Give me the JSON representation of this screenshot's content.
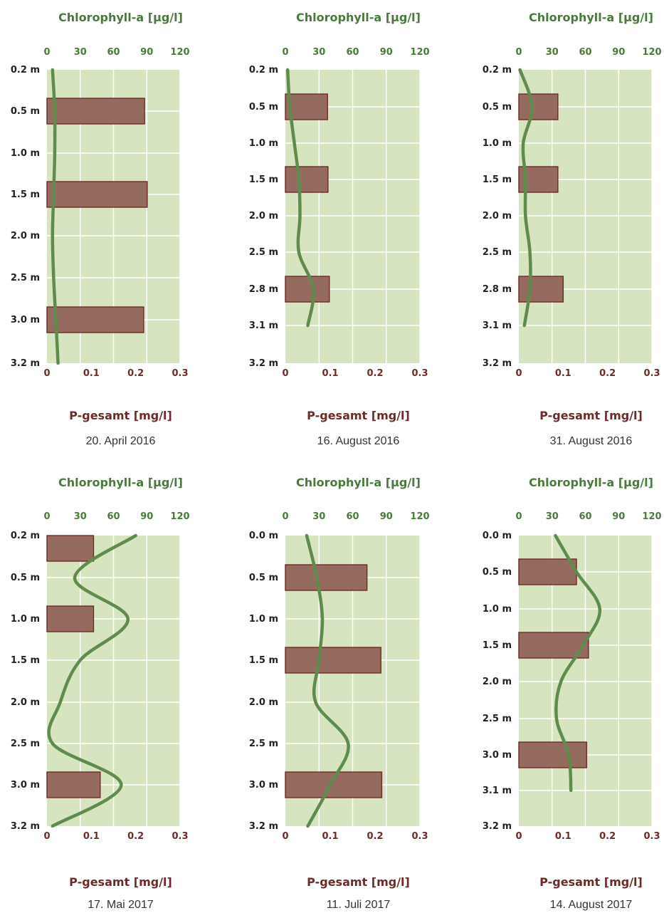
{
  "chart_data": [
    {
      "type": "bar+line",
      "date": "20. April 2016",
      "title_top": "Chlorophyll-a [µg/l]",
      "title_bottom": "P-gesamt [mg/l]",
      "top_ticks": [
        "0",
        "30",
        "60",
        "90",
        "120"
      ],
      "bottom_ticks": [
        "0",
        "0.1",
        "0.2",
        "0.3"
      ],
      "depth_labels": [
        "0.2 m",
        "0.5 m",
        "1.0 m",
        "1.5 m",
        "2.0 m",
        "2.5 m",
        "3.0 m",
        "3.2 m"
      ],
      "p_bars": [
        {
          "depth": "0.5 m",
          "value": 0.22
        },
        {
          "depth": "1.5 m",
          "value": 0.226
        },
        {
          "depth": "3.0 m",
          "value": 0.218
        }
      ],
      "chl_line": {
        "depths": [
          "0.2 m",
          "0.5 m",
          "1.0 m",
          "1.5 m",
          "2.0 m",
          "2.5 m",
          "3.0 m",
          "3.2 m"
        ],
        "values": [
          5,
          7,
          7,
          6,
          5,
          6,
          8,
          10
        ]
      },
      "chl_range": [
        0,
        120
      ],
      "p_range": [
        0,
        0.3
      ]
    },
    {
      "type": "bar+line",
      "date": "16. August 2016",
      "title_top": "Chlorophyll-a [µg/l]",
      "title_bottom": "P-gesamt [mg/l]",
      "top_ticks": [
        "0",
        "30",
        "60",
        "90",
        "120"
      ],
      "bottom_ticks": [
        "0",
        "0.1",
        "0.2",
        "0.3"
      ],
      "depth_labels": [
        "0.2 m",
        "0.5 m",
        "1.0 m",
        "1.5 m",
        "2.0 m",
        "2.5 m",
        "2.8 m",
        "3.1 m",
        "3.2 m"
      ],
      "p_bars": [
        {
          "depth": "0.5 m",
          "value": 0.094
        },
        {
          "depth": "1.5 m",
          "value": 0.095
        },
        {
          "depth": "2.8 m",
          "value": 0.098
        }
      ],
      "chl_line": {
        "depths": [
          "0.2 m",
          "0.5 m",
          "1.0 m",
          "1.5 m",
          "2.0 m",
          "2.5 m",
          "2.8 m",
          "3.1 m"
        ],
        "values": [
          2,
          4,
          8,
          12,
          13,
          12,
          25,
          20
        ]
      },
      "chl_range": [
        0,
        120
      ],
      "p_range": [
        0,
        0.3
      ]
    },
    {
      "type": "bar+line",
      "date": "31. August 2016",
      "title_top": "Chlorophyll-a [µg/l]",
      "title_bottom": "P-gesamt [mg/l]",
      "top_ticks": [
        "0",
        "30",
        "60",
        "90",
        "120"
      ],
      "bottom_ticks": [
        "0",
        "0.1",
        "0.2",
        "0.3"
      ],
      "depth_labels": [
        "0.2 m",
        "0.5 m",
        "1.0 m",
        "1.5 m",
        "2.0 m",
        "2.5 m",
        "2.8 m",
        "3.1 m",
        "3.2 m"
      ],
      "p_bars": [
        {
          "depth": "0.5 m",
          "value": 0.088
        },
        {
          "depth": "1.5 m",
          "value": 0.088
        },
        {
          "depth": "2.8 m",
          "value": 0.1
        }
      ],
      "chl_line": {
        "depths": [
          "0.2 m",
          "0.5 m",
          "1.0 m",
          "1.5 m",
          "2.0 m",
          "2.5 m",
          "2.8 m",
          "3.1 m"
        ],
        "values": [
          1,
          12,
          4,
          6,
          6,
          10,
          10,
          5
        ]
      },
      "chl_range": [
        0,
        120
      ],
      "p_range": [
        0,
        0.3
      ]
    },
    {
      "type": "bar+line",
      "date": "17. Mai 2017",
      "title_top": "Chlorophyll-a [µg/l]",
      "title_bottom": "P-gesamt [mg/l]",
      "top_ticks": [
        "0",
        "30",
        "60",
        "90",
        "120"
      ],
      "bottom_ticks": [
        "0",
        "0.1",
        "0.2",
        "0.3"
      ],
      "depth_labels": [
        "0.2 m",
        "0.5 m",
        "1.0 m",
        "1.5 m",
        "2.0 m",
        "2.5 m",
        "3.0 m",
        "3.2 m"
      ],
      "p_bars": [
        {
          "depth": "0.2 m",
          "value": 0.105
        },
        {
          "depth": "1.0 m",
          "value": 0.105
        },
        {
          "depth": "3.0 m",
          "value": 0.12
        }
      ],
      "chl_line": {
        "depths": [
          "0.2 m",
          "0.5 m",
          "1.0 m",
          "1.5 m",
          "2.0 m",
          "2.5 m",
          "3.0 m",
          "3.2 m"
        ],
        "values": [
          80,
          25,
          73,
          30,
          12,
          5,
          67,
          5
        ]
      },
      "chl_range": [
        0,
        120
      ],
      "p_range": [
        0,
        0.3
      ]
    },
    {
      "type": "bar+line",
      "date": "11. Juli 2017",
      "title_top": "Chlorophyll-a [µg/l]",
      "title_bottom": "P-gesamt [mg/l]",
      "top_ticks": [
        "0",
        "30",
        "60",
        "90",
        "120"
      ],
      "bottom_ticks": [
        "0",
        "0.1",
        "0.2",
        "0.3"
      ],
      "depth_labels": [
        "0.0 m",
        "0.5 m",
        "1.0 m",
        "1.5 m",
        "2.0 m",
        "2.5 m",
        "3.0 m",
        "3.2 m"
      ],
      "p_bars": [
        {
          "depth": "0.5 m",
          "value": 0.182
        },
        {
          "depth": "1.5 m",
          "value": 0.213
        },
        {
          "depth": "3.0 m",
          "value": 0.215
        }
      ],
      "chl_line": {
        "depths": [
          "0.0 m",
          "0.5 m",
          "1.0 m",
          "1.5 m",
          "2.0 m",
          "2.5 m",
          "3.0 m",
          "3.2 m"
        ],
        "values": [
          19,
          28,
          33,
          30,
          27,
          56,
          40,
          20
        ]
      },
      "chl_range": [
        0,
        120
      ],
      "p_range": [
        0,
        0.3
      ]
    },
    {
      "type": "bar+line",
      "date": "14. August 2017",
      "title_top": "Chlorophyll-a [µg/l]",
      "title_bottom": "P-gesamt [mg/l]",
      "top_ticks": [
        "0",
        "30",
        "60",
        "90",
        "120"
      ],
      "bottom_ticks": [
        "0",
        "0.1",
        "0.2",
        "0.3"
      ],
      "depth_labels": [
        "0.0 m",
        "0.5 m",
        "1.0 m",
        "1.5 m",
        "2.0 m",
        "2.5 m",
        "3.0 m",
        "3.1 m",
        "3.2 m"
      ],
      "p_bars": [
        {
          "depth": "0.5 m",
          "value": 0.13
        },
        {
          "depth": "1.5 m",
          "value": 0.157
        },
        {
          "depth": "3.0 m",
          "value": 0.153
        }
      ],
      "chl_line": {
        "depths": [
          "0.0 m",
          "0.5 m",
          "1.0 m",
          "1.5 m",
          "2.0 m",
          "2.5 m",
          "3.0 m",
          "3.1 m"
        ],
        "values": [
          33,
          52,
          73,
          58,
          38,
          34,
          45,
          47
        ]
      },
      "chl_range": [
        0,
        120
      ],
      "p_range": [
        0,
        0.3
      ]
    }
  ]
}
